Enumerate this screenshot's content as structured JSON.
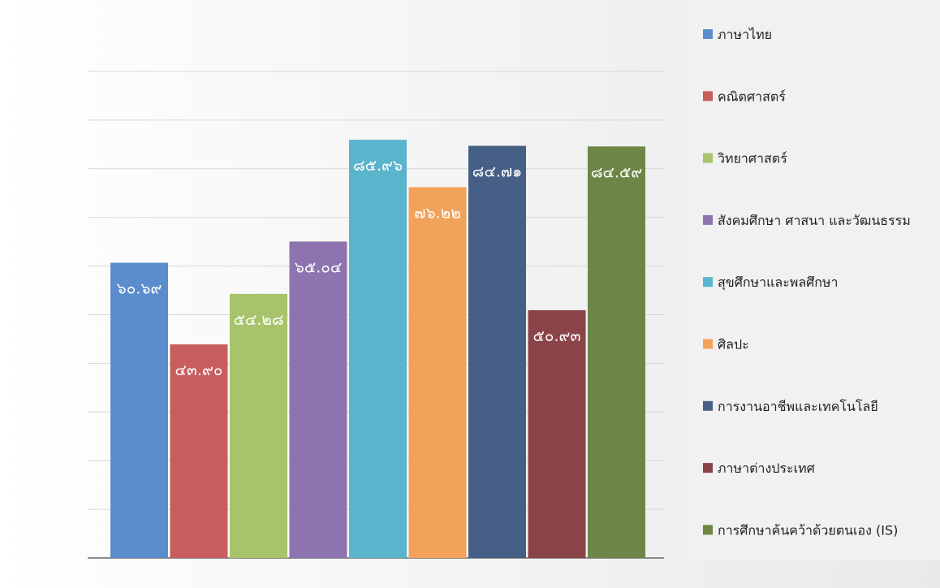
{
  "chart_data": {
    "type": "bar",
    "title": "",
    "xlabel": "",
    "ylabel": "",
    "ylim": [
      0,
      100
    ],
    "grid": true,
    "legend_position": "right",
    "series": [
      {
        "name": "ภาษาไทย",
        "value": 60.69,
        "label": "๖๐.๖๙",
        "color": "#5b8ccb"
      },
      {
        "name": "คณิตศาสตร์",
        "value": 43.9,
        "label": "๔๓.๙๐",
        "color": "#c85d5d"
      },
      {
        "name": "วิทยาศาสตร์",
        "value": 54.28,
        "label": "๕๔.๒๘",
        "color": "#a7c36b"
      },
      {
        "name": "สังคมศึกษา ศาสนา และวัฒนธรรม",
        "value": 65.04,
        "label": "๖๕.๐๔",
        "color": "#8d74b0"
      },
      {
        "name": "สุขศึกษาและพลศึกษา",
        "value": 85.96,
        "label": "๘๕.๙๖",
        "color": "#5ab4cb"
      },
      {
        "name": "ศิลปะ",
        "value": 76.22,
        "label": "๗๖.๒๒",
        "color": "#f2a25a"
      },
      {
        "name": "การงานอาชีพและเทคโนโลยี",
        "value": 84.71,
        "label": "๘๔.๗๑",
        "color": "#455f86"
      },
      {
        "name": "ภาษาต่างประเทศ",
        "value": 50.93,
        "label": "๕๐.๙๓",
        "color": "#8a4346"
      },
      {
        "name": "การศึกษาค้นคว้าด้วยตนเอง (IS)",
        "value": 84.59,
        "label": "๘๔.๕๙",
        "color": "#6d8646"
      }
    ]
  }
}
